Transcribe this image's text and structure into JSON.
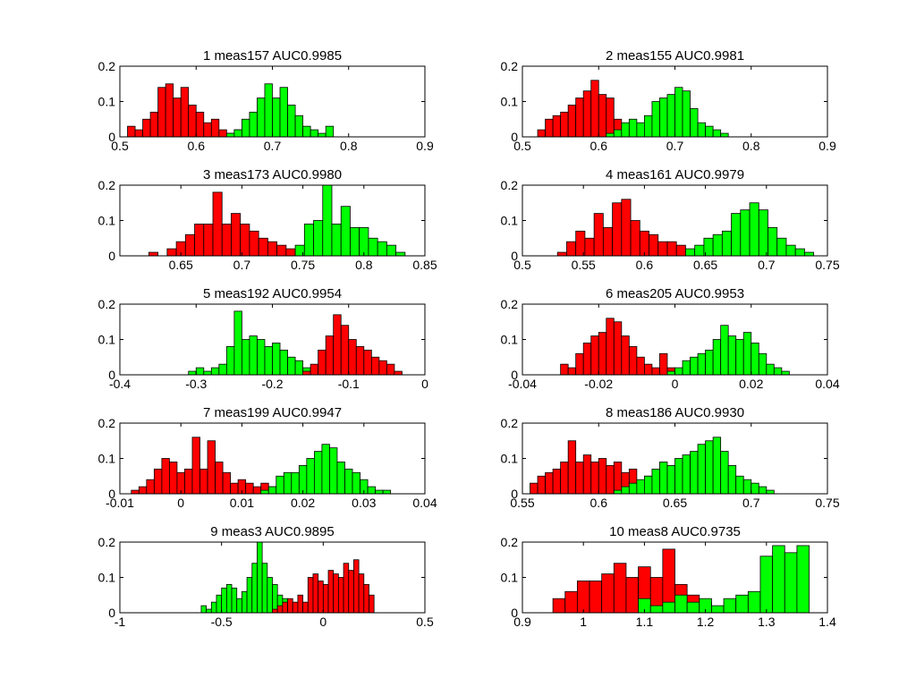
{
  "colors": {
    "class_a": "#ff0000",
    "class_b": "#00ff00",
    "edge": "#000000",
    "background": "#ffffff"
  },
  "chart_data": [
    {
      "type": "bar",
      "title": "1 meas157 AUC0.9985",
      "xlim": [
        0.5,
        0.9
      ],
      "ylim": [
        0,
        0.2
      ],
      "yticks": [
        0,
        0.1,
        0.2
      ],
      "xticks": [
        0.5,
        0.6,
        0.7,
        0.8,
        0.9
      ],
      "xticklabels": [
        "0.5",
        "0.6",
        "0.7",
        "0.8",
        "0.9"
      ],
      "bin_width": 0.01,
      "series": [
        {
          "color": "red",
          "x": [
            0.515,
            0.525,
            0.535,
            0.545,
            0.555,
            0.565,
            0.575,
            0.585,
            0.595,
            0.605,
            0.615,
            0.625,
            0.635,
            0.645,
            0.655,
            0.665
          ],
          "values": [
            0.03,
            0.02,
            0.05,
            0.07,
            0.14,
            0.15,
            0.11,
            0.14,
            0.09,
            0.07,
            0.04,
            0.05,
            0.02,
            0.01,
            0.02,
            0.01
          ]
        },
        {
          "color": "green",
          "x": [
            0.645,
            0.655,
            0.665,
            0.675,
            0.685,
            0.695,
            0.705,
            0.715,
            0.725,
            0.735,
            0.745,
            0.755,
            0.765,
            0.775
          ],
          "values": [
            0.01,
            0.02,
            0.05,
            0.07,
            0.11,
            0.15,
            0.11,
            0.14,
            0.09,
            0.06,
            0.03,
            0.02,
            0.01,
            0.03
          ]
        }
      ]
    },
    {
      "type": "bar",
      "title": "2 meas155 AUC0.9981",
      "xlim": [
        0.5,
        0.9
      ],
      "ylim": [
        0,
        0.2
      ],
      "yticks": [
        0,
        0.1,
        0.2
      ],
      "xticks": [
        0.5,
        0.6,
        0.7,
        0.8,
        0.9
      ],
      "xticklabels": [
        "0.5",
        "0.6",
        "0.7",
        "0.8",
        "0.9"
      ],
      "bin_width": 0.01,
      "series": [
        {
          "color": "red",
          "x": [
            0.525,
            0.535,
            0.545,
            0.555,
            0.565,
            0.575,
            0.585,
            0.595,
            0.605,
            0.615,
            0.625,
            0.635,
            0.645,
            0.655,
            0.665
          ],
          "values": [
            0.02,
            0.05,
            0.06,
            0.07,
            0.09,
            0.11,
            0.13,
            0.16,
            0.12,
            0.11,
            0.05,
            0.02,
            0.01,
            0.01,
            0.01
          ]
        },
        {
          "color": "green",
          "x": [
            0.615,
            0.625,
            0.635,
            0.645,
            0.655,
            0.665,
            0.675,
            0.685,
            0.695,
            0.705,
            0.715,
            0.725,
            0.735,
            0.745,
            0.755,
            0.765
          ],
          "values": [
            0.01,
            0.02,
            0.04,
            0.05,
            0.04,
            0.06,
            0.1,
            0.11,
            0.12,
            0.14,
            0.13,
            0.08,
            0.04,
            0.03,
            0.02,
            0.01
          ]
        }
      ]
    },
    {
      "type": "bar",
      "title": "3 meas173 AUC0.9980",
      "xlim": [
        0.6,
        0.85
      ],
      "ylim": [
        0,
        0.2
      ],
      "yticks": [
        0,
        0.1,
        0.2
      ],
      "xticks": [
        0.65,
        0.7,
        0.75,
        0.8,
        0.85
      ],
      "xticklabels": [
        "0.65",
        "0.7",
        "0.75",
        "0.8",
        "0.85"
      ],
      "bin_width": 0.0075,
      "series": [
        {
          "color": "red",
          "x": [
            0.6275,
            0.6425,
            0.65,
            0.6575,
            0.665,
            0.6725,
            0.68,
            0.6875,
            0.695,
            0.7025,
            0.71,
            0.7175,
            0.725,
            0.7325,
            0.74,
            0.7475
          ],
          "values": [
            0.01,
            0.02,
            0.04,
            0.06,
            0.09,
            0.09,
            0.18,
            0.09,
            0.12,
            0.09,
            0.07,
            0.05,
            0.04,
            0.03,
            0.02,
            0.01
          ]
        },
        {
          "color": "green",
          "x": [
            0.7475,
            0.755,
            0.7625,
            0.77,
            0.7775,
            0.785,
            0.7925,
            0.8,
            0.8075,
            0.815,
            0.8225,
            0.83
          ],
          "values": [
            0.03,
            0.09,
            0.1,
            0.2,
            0.09,
            0.14,
            0.08,
            0.08,
            0.05,
            0.04,
            0.03,
            0.01
          ]
        }
      ]
    },
    {
      "type": "bar",
      "title": "4 meas161 AUC0.9979",
      "xlim": [
        0.5,
        0.75
      ],
      "ylim": [
        0,
        0.2
      ],
      "yticks": [
        0,
        0.1,
        0.2
      ],
      "xticks": [
        0.5,
        0.55,
        0.6,
        0.65,
        0.7,
        0.75
      ],
      "xticklabels": [
        "0.5",
        "0.55",
        "0.6",
        "0.65",
        "0.7",
        "0.75"
      ],
      "bin_width": 0.0075,
      "series": [
        {
          "color": "red",
          "x": [
            0.5325,
            0.54,
            0.5475,
            0.555,
            0.5625,
            0.57,
            0.5775,
            0.585,
            0.5925,
            0.6,
            0.6075,
            0.615,
            0.6225,
            0.63,
            0.6375
          ],
          "values": [
            0.01,
            0.04,
            0.07,
            0.05,
            0.12,
            0.08,
            0.15,
            0.16,
            0.1,
            0.07,
            0.06,
            0.04,
            0.04,
            0.03,
            0.01
          ]
        },
        {
          "color": "green",
          "x": [
            0.6375,
            0.645,
            0.6525,
            0.66,
            0.6675,
            0.675,
            0.6825,
            0.69,
            0.6975,
            0.705,
            0.7125,
            0.72,
            0.7275,
            0.735
          ],
          "values": [
            0.02,
            0.03,
            0.05,
            0.06,
            0.07,
            0.12,
            0.13,
            0.15,
            0.13,
            0.08,
            0.05,
            0.03,
            0.02,
            0.01
          ]
        }
      ]
    },
    {
      "type": "bar",
      "title": "5 meas192 AUC0.9954",
      "xlim": [
        -0.4,
        0
      ],
      "ylim": [
        0,
        0.2
      ],
      "yticks": [
        0,
        0.1,
        0.2
      ],
      "xticks": [
        -0.4,
        -0.3,
        -0.2,
        -0.1,
        0
      ],
      "xticklabels": [
        "-0.4",
        "-0.3",
        "-0.2",
        "-0.1",
        "0"
      ],
      "bin_width": 0.01,
      "series": [
        {
          "color": "green",
          "x": [
            -0.305,
            -0.295,
            -0.285,
            -0.275,
            -0.265,
            -0.255,
            -0.245,
            -0.235,
            -0.225,
            -0.215,
            -0.205,
            -0.195,
            -0.185,
            -0.175,
            -0.165,
            -0.155,
            -0.145,
            -0.135
          ],
          "values": [
            0.01,
            0.02,
            0.01,
            0.02,
            0.03,
            0.08,
            0.18,
            0.1,
            0.11,
            0.1,
            0.08,
            0.09,
            0.07,
            0.05,
            0.04,
            0.02,
            0.02,
            0.01
          ]
        },
        {
          "color": "red",
          "x": [
            -0.155,
            -0.145,
            -0.135,
            -0.125,
            -0.115,
            -0.105,
            -0.095,
            -0.085,
            -0.075,
            -0.065,
            -0.055,
            -0.045,
            -0.035
          ],
          "values": [
            0.01,
            0.03,
            0.07,
            0.11,
            0.17,
            0.14,
            0.1,
            0.08,
            0.07,
            0.05,
            0.04,
            0.03,
            0.01
          ]
        }
      ]
    },
    {
      "type": "bar",
      "title": "6 meas205 AUC0.9953",
      "xlim": [
        -0.04,
        0.04
      ],
      "ylim": [
        0,
        0.2
      ],
      "yticks": [
        0,
        0.1,
        0.2
      ],
      "xticks": [
        -0.04,
        -0.02,
        0,
        0.02,
        0.04
      ],
      "xticklabels": [
        "-0.04",
        "-0.02",
        "0",
        "0.02",
        "0.04"
      ],
      "bin_width": 0.002,
      "series": [
        {
          "color": "red",
          "x": [
            -0.029,
            -0.027,
            -0.025,
            -0.023,
            -0.021,
            -0.019,
            -0.017,
            -0.015,
            -0.013,
            -0.011,
            -0.009,
            -0.007,
            -0.005,
            -0.003,
            -0.001,
            0.001,
            0.003,
            0.005,
            0.007
          ],
          "values": [
            0.03,
            0.02,
            0.06,
            0.09,
            0.11,
            0.12,
            0.16,
            0.15,
            0.11,
            0.08,
            0.05,
            0.03,
            0.02,
            0.06,
            0.02,
            0.01,
            0.02,
            0.01,
            0.02
          ]
        },
        {
          "color": "green",
          "x": [
            -0.001,
            0.001,
            0.003,
            0.005,
            0.007,
            0.009,
            0.011,
            0.013,
            0.015,
            0.017,
            0.019,
            0.021,
            0.023,
            0.025,
            0.027,
            0.029
          ],
          "values": [
            0.01,
            0.02,
            0.04,
            0.05,
            0.06,
            0.07,
            0.1,
            0.14,
            0.11,
            0.1,
            0.12,
            0.09,
            0.06,
            0.03,
            0.02,
            0.01
          ]
        }
      ]
    },
    {
      "type": "bar",
      "title": "7 meas199 AUC0.9947",
      "xlim": [
        -0.01,
        0.04
      ],
      "ylim": [
        0,
        0.2
      ],
      "yticks": [
        0,
        0.1,
        0.2
      ],
      "xticks": [
        -0.01,
        0,
        0.01,
        0.02,
        0.03,
        0.04
      ],
      "xticklabels": [
        "-0.01",
        "0",
        "0.01",
        "0.02",
        "0.03",
        "0.04"
      ],
      "bin_width": 0.00125,
      "series": [
        {
          "color": "red",
          "x": [
            -0.0075,
            -0.00625,
            -0.005,
            -0.00375,
            -0.0025,
            -0.00125,
            0,
            0.00125,
            0.0025,
            0.00375,
            0.005,
            0.00625,
            0.0075,
            0.00875,
            0.01,
            0.01125,
            0.0125,
            0.01375,
            0.015,
            0.01625,
            0.0175
          ],
          "values": [
            0.01,
            0.02,
            0.04,
            0.07,
            0.1,
            0.09,
            0.06,
            0.07,
            0.16,
            0.07,
            0.15,
            0.09,
            0.06,
            0.03,
            0.04,
            0.03,
            0.02,
            0.03,
            0.02,
            0.01,
            0.01
          ]
        },
        {
          "color": "green",
          "x": [
            0.01375,
            0.015,
            0.01625,
            0.0175,
            0.01875,
            0.02,
            0.02125,
            0.0225,
            0.02375,
            0.025,
            0.02625,
            0.0275,
            0.02875,
            0.03,
            0.03125,
            0.0325,
            0.03375
          ],
          "values": [
            0.01,
            0.02,
            0.05,
            0.06,
            0.06,
            0.08,
            0.1,
            0.12,
            0.14,
            0.13,
            0.09,
            0.07,
            0.06,
            0.04,
            0.02,
            0.01,
            0.01
          ]
        }
      ]
    },
    {
      "type": "bar",
      "title": "8 meas186 AUC0.9930",
      "xlim": [
        0.55,
        0.75
      ],
      "ylim": [
        0,
        0.2
      ],
      "yticks": [
        0,
        0.1,
        0.2
      ],
      "xticks": [
        0.55,
        0.6,
        0.65,
        0.7,
        0.75
      ],
      "xticklabels": [
        "0.55",
        "0.6",
        "0.65",
        "0.7",
        "0.75"
      ],
      "bin_width": 0.005,
      "series": [
        {
          "color": "red",
          "x": [
            0.5575,
            0.5625,
            0.5675,
            0.5725,
            0.5775,
            0.5825,
            0.5875,
            0.5925,
            0.5975,
            0.6025,
            0.6075,
            0.6125,
            0.6175,
            0.6225,
            0.6275,
            0.6325,
            0.6375
          ],
          "values": [
            0.03,
            0.05,
            0.06,
            0.07,
            0.09,
            0.15,
            0.09,
            0.11,
            0.09,
            0.1,
            0.08,
            0.09,
            0.06,
            0.07,
            0.03,
            0.05,
            0.02
          ]
        },
        {
          "color": "green",
          "x": [
            0.6125,
            0.6175,
            0.6225,
            0.6275,
            0.6325,
            0.6375,
            0.6425,
            0.6475,
            0.6525,
            0.6575,
            0.6625,
            0.6675,
            0.6725,
            0.6775,
            0.6825,
            0.6875,
            0.6925,
            0.6975,
            0.7025,
            0.7075,
            0.7125
          ],
          "values": [
            0.01,
            0.02,
            0.03,
            0.04,
            0.05,
            0.07,
            0.09,
            0.08,
            0.1,
            0.11,
            0.12,
            0.14,
            0.15,
            0.16,
            0.12,
            0.08,
            0.05,
            0.04,
            0.03,
            0.02,
            0.01
          ]
        }
      ]
    },
    {
      "type": "bar",
      "title": "9 meas3 AUC0.9895",
      "xlim": [
        -1,
        0.5
      ],
      "ylim": [
        0,
        0.2
      ],
      "yticks": [
        0,
        0.1,
        0.2
      ],
      "xticks": [
        -1,
        -0.5,
        0,
        0.5
      ],
      "xticklabels": [
        "-1",
        "-0.5",
        "0",
        "0.5"
      ],
      "bin_width": 0.025,
      "series": [
        {
          "color": "green",
          "x": [
            -0.5875,
            -0.5625,
            -0.5375,
            -0.5125,
            -0.4875,
            -0.4625,
            -0.4375,
            -0.4125,
            -0.3875,
            -0.3625,
            -0.3375,
            -0.3125,
            -0.2875,
            -0.2625,
            -0.2375,
            -0.2125,
            -0.1875,
            -0.1625,
            -0.1375,
            -0.1125
          ],
          "values": [
            0.02,
            0.01,
            0.03,
            0.05,
            0.07,
            0.08,
            0.07,
            0.04,
            0.06,
            0.1,
            0.14,
            0.2,
            0.14,
            0.1,
            0.08,
            0.05,
            0.04,
            0.03,
            0.02,
            0.01
          ]
        },
        {
          "color": "red",
          "x": [
            -0.2375,
            -0.2125,
            -0.1875,
            -0.1625,
            -0.1375,
            -0.1125,
            -0.0875,
            -0.0625,
            -0.0375,
            -0.0125,
            0.0125,
            0.0375,
            0.0625,
            0.0875,
            0.1125,
            0.1375,
            0.1625,
            0.1875,
            0.2125,
            0.2375
          ],
          "values": [
            0.01,
            0.02,
            0.03,
            0.04,
            0.03,
            0.05,
            0.03,
            0.1,
            0.11,
            0.09,
            0.08,
            0.12,
            0.11,
            0.1,
            0.14,
            0.12,
            0.15,
            0.11,
            0.08,
            0.05
          ]
        }
      ]
    },
    {
      "type": "bar",
      "title": "10 meas8 AUC0.9735",
      "xlim": [
        0.9,
        1.4
      ],
      "ylim": [
        0,
        0.2
      ],
      "yticks": [
        0,
        0.1,
        0.2
      ],
      "xticks": [
        0.9,
        1,
        1.1,
        1.2,
        1.3,
        1.4
      ],
      "xticklabels": [
        "0.9",
        "1",
        "1.1",
        "1.2",
        "1.3",
        "1.4"
      ],
      "bin_width": 0.02,
      "series": [
        {
          "color": "red",
          "x": [
            0.96,
            0.98,
            1.0,
            1.02,
            1.04,
            1.06,
            1.08,
            1.1,
            1.12,
            1.14,
            1.16,
            1.18,
            1.2,
            1.22
          ],
          "values": [
            0.04,
            0.06,
            0.09,
            0.09,
            0.11,
            0.14,
            0.1,
            0.13,
            0.1,
            0.18,
            0.08,
            0.05,
            0.03,
            0.01
          ]
        },
        {
          "color": "green",
          "x": [
            1.1,
            1.12,
            1.14,
            1.16,
            1.18,
            1.2,
            1.22,
            1.24,
            1.26,
            1.28,
            1.3,
            1.32,
            1.34,
            1.36
          ],
          "values": [
            0.04,
            0.02,
            0.03,
            0.05,
            0.03,
            0.04,
            0.02,
            0.04,
            0.05,
            0.06,
            0.16,
            0.19,
            0.17,
            0.19
          ]
        }
      ]
    }
  ]
}
